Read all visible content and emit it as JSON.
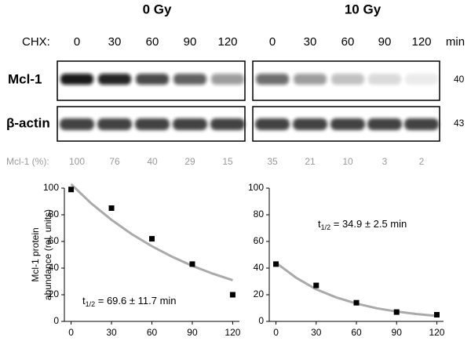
{
  "blot": {
    "chx_label": "CHX:",
    "unit": "min",
    "pct_label": "Mcl-1 (%):",
    "rows": [
      {
        "label": "Mcl-1",
        "mw": "40"
      },
      {
        "label": "β-actin",
        "mw": "43"
      }
    ],
    "groups": [
      {
        "title": "0 Gy",
        "chx": [
          0,
          30,
          60,
          90,
          120
        ],
        "mcl1_pct": [
          100,
          76,
          40,
          29,
          15
        ]
      },
      {
        "title": "10 Gy",
        "chx": [
          0,
          30,
          60,
          90,
          120
        ],
        "mcl1_pct": [
          35,
          21,
          10,
          3,
          2
        ]
      }
    ]
  },
  "chart_data": [
    {
      "type": "scatter",
      "ylabel": [
        "Mcl-1 protein",
        "abundance (rel. units)"
      ],
      "x": [
        0,
        30,
        60,
        90,
        120
      ],
      "values": [
        99,
        85,
        62,
        43,
        20
      ],
      "color": "#000000",
      "fit": {
        "x": [
          0,
          15,
          30,
          45,
          60,
          75,
          90,
          105,
          120
        ],
        "values": [
          103,
          88.5,
          76.2,
          65.5,
          56.4,
          48.5,
          41.7,
          35.9,
          30.9
        ],
        "color": "#aaaaaa"
      },
      "xlim": [
        -5,
        125
      ],
      "ylim": [
        0,
        100
      ],
      "xticks": [
        0,
        30,
        60,
        90,
        120
      ],
      "yticks": [
        0,
        20,
        40,
        60,
        80,
        100
      ],
      "annotation": {
        "t": "t",
        "sub": "1/2",
        "rest": " = 69.6 ± 11.7 min"
      }
    },
    {
      "type": "scatter",
      "x": [
        0,
        30,
        60,
        90,
        120
      ],
      "values": [
        43,
        27,
        14,
        7,
        5
      ],
      "color": "#000000",
      "fit": {
        "x": [
          0,
          15,
          30,
          45,
          60,
          75,
          90,
          105,
          120
        ],
        "values": [
          44,
          32.8,
          24.1,
          18.0,
          13.4,
          9.9,
          7.4,
          5.5,
          4.1
        ],
        "color": "#aaaaaa"
      },
      "xlim": [
        -5,
        125
      ],
      "ylim": [
        0,
        100
      ],
      "xticks": [
        0,
        30,
        60,
        90,
        120
      ],
      "yticks": [
        0,
        20,
        40,
        60,
        80,
        100
      ],
      "annotation": {
        "t": "t",
        "sub": "1/2",
        "rest": " = 34.9 ± 2.5 min"
      }
    }
  ]
}
